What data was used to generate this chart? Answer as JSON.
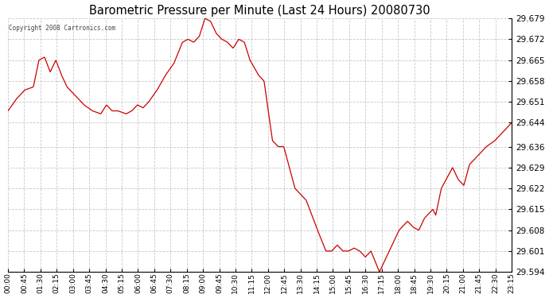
{
  "title": "Barometric Pressure per Minute (Last 24 Hours) 20080730",
  "copyright": "Copyright 2008 Cartronics.com",
  "line_color": "#cc0000",
  "background_color": "#ffffff",
  "grid_color": "#c8c8c8",
  "ylim": [
    29.594,
    29.679
  ],
  "yticks": [
    29.594,
    29.601,
    29.608,
    29.615,
    29.622,
    29.629,
    29.636,
    29.644,
    29.651,
    29.658,
    29.665,
    29.672,
    29.679
  ],
  "xtick_labels": [
    "00:00",
    "00:45",
    "01:30",
    "02:15",
    "03:00",
    "03:45",
    "04:30",
    "05:15",
    "06:00",
    "06:45",
    "07:30",
    "08:15",
    "09:00",
    "09:45",
    "10:30",
    "11:15",
    "12:00",
    "12:45",
    "13:30",
    "14:15",
    "15:00",
    "15:45",
    "16:30",
    "17:15",
    "18:00",
    "18:45",
    "19:30",
    "20:15",
    "21:00",
    "21:45",
    "22:30",
    "23:15"
  ],
  "control_points": [
    [
      0,
      29.648
    ],
    [
      15,
      29.652
    ],
    [
      30,
      29.655
    ],
    [
      45,
      29.656
    ],
    [
      55,
      29.665
    ],
    [
      65,
      29.666
    ],
    [
      75,
      29.661
    ],
    [
      85,
      29.665
    ],
    [
      95,
      29.66
    ],
    [
      105,
      29.656
    ],
    [
      120,
      29.653
    ],
    [
      135,
      29.65
    ],
    [
      150,
      29.648
    ],
    [
      165,
      29.647
    ],
    [
      175,
      29.65
    ],
    [
      185,
      29.648
    ],
    [
      195,
      29.648
    ],
    [
      210,
      29.647
    ],
    [
      220,
      29.648
    ],
    [
      230,
      29.65
    ],
    [
      240,
      29.649
    ],
    [
      250,
      29.651
    ],
    [
      265,
      29.655
    ],
    [
      280,
      29.66
    ],
    [
      295,
      29.664
    ],
    [
      310,
      29.671
    ],
    [
      320,
      29.672
    ],
    [
      330,
      29.671
    ],
    [
      340,
      29.673
    ],
    [
      350,
      29.679
    ],
    [
      360,
      29.678
    ],
    [
      370,
      29.674
    ],
    [
      380,
      29.672
    ],
    [
      390,
      29.671
    ],
    [
      400,
      29.669
    ],
    [
      410,
      29.672
    ],
    [
      420,
      29.671
    ],
    [
      430,
      29.665
    ],
    [
      445,
      29.66
    ],
    [
      455,
      29.658
    ],
    [
      470,
      29.638
    ],
    [
      480,
      29.636
    ],
    [
      490,
      29.636
    ],
    [
      510,
      29.622
    ],
    [
      530,
      29.618
    ],
    [
      550,
      29.608
    ],
    [
      565,
      29.601
    ],
    [
      575,
      29.601
    ],
    [
      585,
      29.603
    ],
    [
      595,
      29.601
    ],
    [
      605,
      29.601
    ],
    [
      615,
      29.602
    ],
    [
      625,
      29.601
    ],
    [
      635,
      29.599
    ],
    [
      645,
      29.601
    ],
    [
      660,
      29.594
    ],
    [
      680,
      29.602
    ],
    [
      695,
      29.608
    ],
    [
      710,
      29.611
    ],
    [
      720,
      29.609
    ],
    [
      730,
      29.608
    ],
    [
      740,
      29.612
    ],
    [
      755,
      29.615
    ],
    [
      760,
      29.613
    ],
    [
      770,
      29.622
    ],
    [
      790,
      29.629
    ],
    [
      800,
      29.625
    ],
    [
      810,
      29.623
    ],
    [
      820,
      29.63
    ],
    [
      835,
      29.633
    ],
    [
      850,
      29.636
    ],
    [
      865,
      29.638
    ],
    [
      880,
      29.641
    ],
    [
      895,
      29.644
    ]
  ]
}
